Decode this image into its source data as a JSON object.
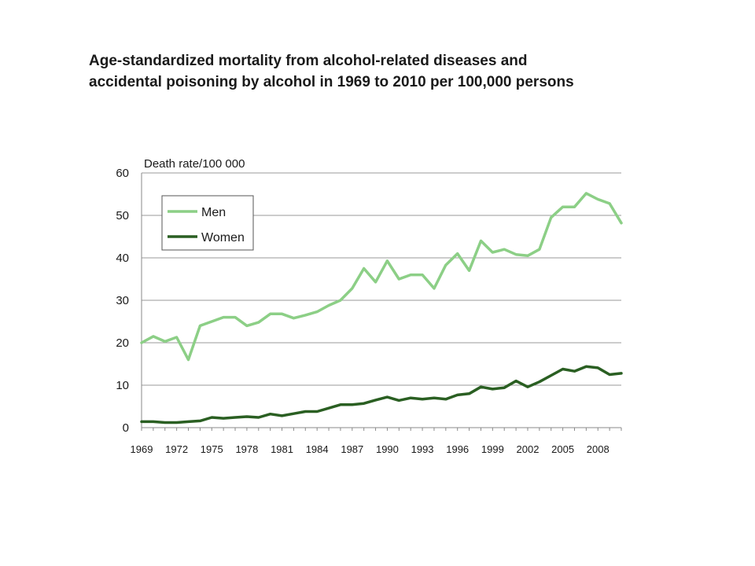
{
  "slide": {
    "title": "Age-standardized mortality from alcohol-related diseases and accidental poisoning by alcohol in 1969 to 2010 per 100,000 persons"
  },
  "chart_data": {
    "type": "line",
    "title": "Age-standardized mortality from alcohol-related diseases and accidental poisoning by alcohol in 1969 to 2010 per 100,000 persons",
    "ylabel": "Death rate/100 000",
    "xlabel": "",
    "ylim": [
      0,
      60
    ],
    "yticks": [
      0,
      10,
      20,
      30,
      40,
      50,
      60
    ],
    "xlim": [
      1969,
      2010
    ],
    "xticks": [
      1969,
      1972,
      1975,
      1978,
      1981,
      1984,
      1987,
      1990,
      1993,
      1996,
      1999,
      2002,
      2005,
      2008
    ],
    "grid": true,
    "legend_position": "top-left",
    "x": [
      1969,
      1970,
      1971,
      1972,
      1973,
      1974,
      1975,
      1976,
      1977,
      1978,
      1979,
      1980,
      1981,
      1982,
      1983,
      1984,
      1985,
      1986,
      1987,
      1988,
      1989,
      1990,
      1991,
      1992,
      1993,
      1994,
      1995,
      1996,
      1997,
      1998,
      1999,
      2000,
      2001,
      2002,
      2003,
      2004,
      2005,
      2006,
      2007,
      2008,
      2009,
      2010
    ],
    "series": [
      {
        "name": "Men",
        "color": "#8ccf86",
        "values": [
          20.0,
          21.5,
          20.3,
          21.3,
          16.0,
          24.0,
          25.0,
          26.0,
          26.0,
          24.0,
          24.8,
          26.8,
          26.8,
          25.8,
          26.5,
          27.3,
          28.8,
          30.0,
          32.8,
          37.5,
          34.3,
          39.3,
          35.0,
          36.0,
          36.0,
          32.8,
          38.3,
          41.0,
          37.0,
          44.0,
          41.3,
          42.0,
          40.8,
          40.5,
          42.0,
          49.5,
          52.0,
          52.0,
          55.2,
          53.8,
          52.8,
          48.2
        ]
      },
      {
        "name": "Women",
        "color": "#2a5f22",
        "values": [
          1.4,
          1.4,
          1.2,
          1.2,
          1.4,
          1.6,
          2.4,
          2.2,
          2.4,
          2.6,
          2.4,
          3.2,
          2.8,
          3.3,
          3.8,
          3.8,
          4.6,
          5.4,
          5.4,
          5.7,
          6.5,
          7.2,
          6.4,
          7.0,
          6.7,
          7.0,
          6.7,
          7.7,
          8.0,
          9.6,
          9.1,
          9.4,
          11.0,
          9.6,
          10.8,
          12.3,
          13.8,
          13.3,
          14.4,
          14.1,
          12.5,
          12.8
        ]
      }
    ]
  }
}
